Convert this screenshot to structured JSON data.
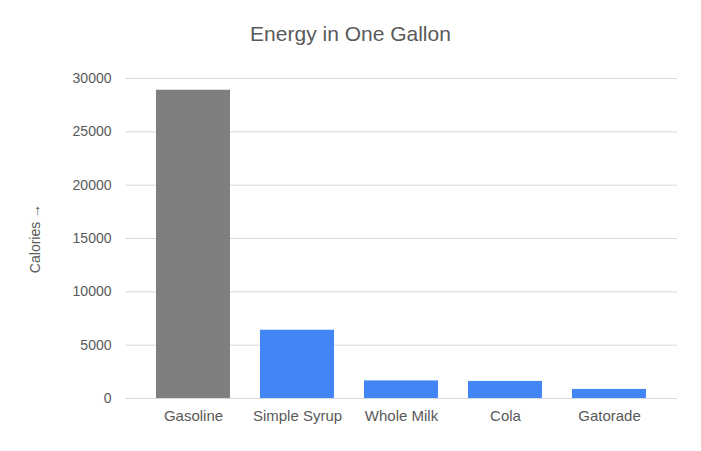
{
  "chart_data": {
    "type": "bar",
    "title": "Energy in One Gallon",
    "y_label": "Calories",
    "categories": [
      "Gasoline",
      "Simple Syrup",
      "Whole Milk",
      "Cola",
      "Gatorade"
    ],
    "values": [
      28900,
      6400,
      1650,
      1600,
      850
    ],
    "colors": [
      "#7f7f7f",
      "#4285f4",
      "#4285f4",
      "#4285f4",
      "#4285f4"
    ],
    "ylim": [
      0,
      30000
    ],
    "yticks": [
      0,
      5000,
      10000,
      15000,
      20000,
      25000,
      30000
    ],
    "grid": true
  }
}
